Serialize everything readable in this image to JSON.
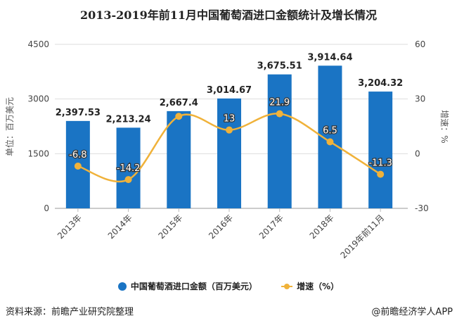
{
  "chart_data": {
    "type": "bar",
    "title": "2013-2019年前11月中国葡萄酒进口金额统计及增长情况",
    "categories": [
      "2013年",
      "2014年",
      "2015年",
      "2016年",
      "2017年",
      "2018年",
      "2019年前11月"
    ],
    "series": [
      {
        "name": "中国葡萄酒进口金额（百万美元）",
        "type": "bar",
        "axis": "left",
        "values": [
          2397.53,
          2213.24,
          2667.4,
          3014.67,
          3675.51,
          3914.64,
          3204.32
        ],
        "labels": [
          "2,397.53",
          "2,213.24",
          "2,667.4",
          "3,014.67",
          "3,675.51",
          "3,914.64",
          "3,204.32"
        ],
        "color": "#1a74c4"
      },
      {
        "name": "增速（%）",
        "type": "line",
        "axis": "right",
        "values": [
          -6.8,
          -14.2,
          20.5,
          13,
          21.9,
          6.5,
          -11.3
        ],
        "labels": [
          "-6.8",
          "-14.2",
          "",
          "13",
          "21.9",
          "6.5",
          "-11.3"
        ],
        "color": "#f0b23a"
      }
    ],
    "ylabel": "单位：百万美元",
    "y2label": "增速：%",
    "ylim": [
      0,
      4500
    ],
    "yticks": [
      0,
      1500,
      3000,
      4500
    ],
    "y2lim": [
      -30,
      60
    ],
    "y2ticks": [
      -30,
      0,
      30,
      60
    ],
    "grid": true,
    "legend_position": "bottom"
  },
  "footer": {
    "source": "资料来源：前瞻产业研究院整理",
    "brand": "@前瞻经济学人APP"
  }
}
